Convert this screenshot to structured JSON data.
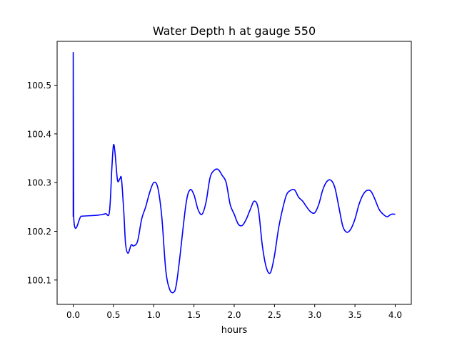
{
  "chart_data": {
    "type": "line",
    "title": "Water Depth h at gauge 550",
    "xlabel": "hours",
    "ylabel": "",
    "xlim": [
      -0.2,
      4.2
    ],
    "ylim": [
      100.05,
      100.59
    ],
    "xticks": [
      0.0,
      0.5,
      1.0,
      1.5,
      2.0,
      2.5,
      3.0,
      3.5,
      4.0
    ],
    "xtick_labels": [
      "0.0",
      "0.5",
      "1.0",
      "1.5",
      "2.0",
      "2.5",
      "3.0",
      "3.5",
      "4.0"
    ],
    "yticks": [
      100.1,
      100.2,
      100.3,
      100.4,
      100.5
    ],
    "ytick_labels": [
      "100.1",
      "100.2",
      "100.3",
      "100.4",
      "100.5"
    ],
    "grid": false,
    "series": [
      {
        "color": "#0000ff",
        "x": [
          0.0,
          0.0,
          0.005,
          0.1,
          0.2,
          0.3,
          0.4,
          0.45,
          0.48,
          0.5,
          0.52,
          0.55,
          0.58,
          0.6,
          0.63,
          0.65,
          0.68,
          0.72,
          0.75,
          0.8,
          0.85,
          0.9,
          0.95,
          1.0,
          1.05,
          1.1,
          1.15,
          1.2,
          1.25,
          1.28,
          1.32,
          1.4,
          1.45,
          1.5,
          1.55,
          1.6,
          1.65,
          1.7,
          1.75,
          1.8,
          1.85,
          1.9,
          1.95,
          2.0,
          2.05,
          2.1,
          2.15,
          2.2,
          2.25,
          2.3,
          2.35,
          2.4,
          2.45,
          2.5,
          2.55,
          2.6,
          2.65,
          2.7,
          2.75,
          2.8,
          2.85,
          2.9,
          2.95,
          3.0,
          3.05,
          3.1,
          3.15,
          3.2,
          3.25,
          3.3,
          3.35,
          3.4,
          3.45,
          3.5,
          3.55,
          3.6,
          3.65,
          3.7,
          3.75,
          3.8,
          3.85,
          3.9,
          3.95,
          4.0
        ],
        "y": [
          100.23,
          100.567,
          100.231,
          100.231,
          100.232,
          100.233,
          100.236,
          100.24,
          100.33,
          100.377,
          100.36,
          100.305,
          100.308,
          100.307,
          100.235,
          100.175,
          100.155,
          100.172,
          100.17,
          100.18,
          100.225,
          100.25,
          100.28,
          100.3,
          100.29,
          100.23,
          100.12,
          100.08,
          100.075,
          100.09,
          100.14,
          100.255,
          100.285,
          100.275,
          100.245,
          100.235,
          100.26,
          100.31,
          100.325,
          100.327,
          100.315,
          100.3,
          100.255,
          100.235,
          100.215,
          100.212,
          100.225,
          100.245,
          100.262,
          100.245,
          100.17,
          100.125,
          100.115,
          100.15,
          100.205,
          100.245,
          100.275,
          100.284,
          100.285,
          100.27,
          100.262,
          100.25,
          100.24,
          100.238,
          100.255,
          100.285,
          100.302,
          100.305,
          100.29,
          100.25,
          100.21,
          100.198,
          100.205,
          100.225,
          100.255,
          100.275,
          100.284,
          100.282,
          100.265,
          100.245,
          100.235,
          100.23,
          100.235,
          100.235
        ]
      }
    ]
  }
}
